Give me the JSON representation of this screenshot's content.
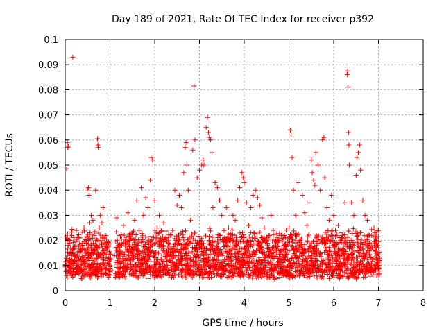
{
  "chart_data": {
    "type": "scatter",
    "title": "Day 189 of 2021, Rate Of TEC Index for receiver p392",
    "xlabel": "GPS time / hours",
    "ylabel": "ROTI / TECUs",
    "xlim": [
      0,
      8
    ],
    "ylim": [
      0,
      0.1
    ],
    "xticks": [
      0,
      1,
      2,
      3,
      4,
      5,
      6,
      7,
      8
    ],
    "xtick_labels": [
      "0",
      "1",
      "2",
      "3",
      "4",
      "5",
      "6",
      "7",
      "8"
    ],
    "yticks": [
      0,
      0.01,
      0.02,
      0.03,
      0.04,
      0.05,
      0.06,
      0.07,
      0.08,
      0.09,
      0.1
    ],
    "ytick_labels": [
      "0",
      "0.01",
      "0.02",
      "0.03",
      "0.04",
      "0.05",
      "0.06",
      "0.07",
      "0.08",
      "0.09",
      "0.1"
    ],
    "grid": true,
    "marker": "+",
    "color": "#ff0000",
    "series": [
      {
        "name": "ROTI",
        "points": [
          [
            0.02,
            0.008
          ],
          [
            0.03,
            0.0485
          ],
          [
            0.04,
            0.012
          ],
          [
            0.05,
            0.059
          ],
          [
            0.06,
            0.057
          ],
          [
            0.07,
            0.0575
          ],
          [
            0.08,
            0.015
          ],
          [
            0.1,
            0.02
          ],
          [
            0.12,
            0.009
          ],
          [
            0.15,
            0.022
          ],
          [
            0.17,
            0.093
          ],
          [
            0.2,
            0.011
          ],
          [
            0.22,
            0.018
          ],
          [
            0.25,
            0.024
          ],
          [
            0.28,
            0.007
          ],
          [
            0.3,
            0.013
          ],
          [
            0.33,
            0.021
          ],
          [
            0.36,
            0.016
          ],
          [
            0.4,
            0.01
          ],
          [
            0.42,
            0.025
          ],
          [
            0.45,
            0.014
          ],
          [
            0.48,
            0.02
          ],
          [
            0.5,
            0.0405
          ],
          [
            0.52,
            0.041
          ],
          [
            0.53,
            0.038
          ],
          [
            0.55,
            0.027
          ],
          [
            0.58,
            0.03
          ],
          [
            0.6,
            0.012
          ],
          [
            0.62,
            0.028
          ],
          [
            0.65,
            0.022
          ],
          [
            0.68,
            0.04
          ],
          [
            0.7,
            0.018
          ],
          [
            0.72,
            0.0605
          ],
          [
            0.73,
            0.058
          ],
          [
            0.74,
            0.057
          ],
          [
            0.76,
            0.025
          ],
          [
            0.78,
            0.03
          ],
          [
            0.8,
            0.02
          ],
          [
            0.82,
            0.027
          ],
          [
            0.85,
            0.033
          ],
          [
            0.88,
            0.015
          ],
          [
            0.9,
            0.012
          ],
          [
            0.92,
            0.009
          ],
          [
            0.95,
            0.006
          ],
          [
            1.0,
            0.01
          ],
          [
            1.05,
            0.008
          ],
          [
            1.1,
            0.014
          ],
          [
            1.15,
            0.029
          ],
          [
            1.2,
            0.022
          ],
          [
            1.25,
            0.018
          ],
          [
            1.3,
            0.026
          ],
          [
            1.35,
            0.012
          ],
          [
            1.4,
            0.031
          ],
          [
            1.45,
            0.02
          ],
          [
            1.5,
            0.015
          ],
          [
            1.55,
            0.028
          ],
          [
            1.6,
            0.036
          ],
          [
            1.65,
            0.024
          ],
          [
            1.7,
            0.041
          ],
          [
            1.75,
            0.03
          ],
          [
            1.8,
            0.037
          ],
          [
            1.85,
            0.033
          ],
          [
            1.9,
            0.044
          ],
          [
            1.92,
            0.053
          ],
          [
            1.95,
            0.052
          ],
          [
            2.0,
            0.036
          ],
          [
            2.05,
            0.025
          ],
          [
            2.1,
            0.03
          ],
          [
            2.15,
            0.02
          ],
          [
            2.2,
            0.027
          ],
          [
            2.3,
            0.019
          ],
          [
            2.4,
            0.024
          ],
          [
            2.45,
            0.04
          ],
          [
            2.5,
            0.034
          ],
          [
            2.55,
            0.038
          ],
          [
            2.6,
            0.033
          ],
          [
            2.65,
            0.047
          ],
          [
            2.68,
            0.057
          ],
          [
            2.7,
            0.059
          ],
          [
            2.72,
            0.05
          ],
          [
            2.75,
            0.04
          ],
          [
            2.8,
            0.028
          ],
          [
            2.85,
            0.056
          ],
          [
            2.88,
            0.0815
          ],
          [
            2.9,
            0.06
          ],
          [
            2.95,
            0.045
          ],
          [
            3.0,
            0.048
          ],
          [
            3.05,
            0.05
          ],
          [
            3.08,
            0.052
          ],
          [
            3.1,
            0.05
          ],
          [
            3.15,
            0.065
          ],
          [
            3.18,
            0.069
          ],
          [
            3.2,
            0.063
          ],
          [
            3.22,
            0.061
          ],
          [
            3.25,
            0.06
          ],
          [
            3.28,
            0.055
          ],
          [
            3.3,
            0.033
          ],
          [
            3.35,
            0.043
          ],
          [
            3.4,
            0.041
          ],
          [
            3.45,
            0.036
          ],
          [
            3.5,
            0.03
          ],
          [
            3.55,
            0.02
          ],
          [
            3.6,
            0.033
          ],
          [
            3.65,
            0.025
          ],
          [
            3.7,
            0.02
          ],
          [
            3.75,
            0.03
          ],
          [
            3.8,
            0.028
          ],
          [
            3.85,
            0.036
          ],
          [
            3.9,
            0.041
          ],
          [
            3.95,
            0.047
          ],
          [
            3.98,
            0.045
          ],
          [
            4.0,
            0.043
          ],
          [
            4.05,
            0.035
          ],
          [
            4.1,
            0.026
          ],
          [
            4.15,
            0.033
          ],
          [
            4.2,
            0.038
          ],
          [
            4.25,
            0.04
          ],
          [
            4.3,
            0.037
          ],
          [
            4.35,
            0.034
          ],
          [
            4.4,
            0.029
          ],
          [
            4.45,
            0.025
          ],
          [
            4.5,
            0.02
          ],
          [
            4.6,
            0.03
          ],
          [
            4.65,
            0.024
          ],
          [
            4.7,
            0.018
          ],
          [
            4.8,
            0.022
          ],
          [
            4.9,
            0.017
          ],
          [
            5.0,
            0.025
          ],
          [
            5.03,
            0.064
          ],
          [
            5.05,
            0.062
          ],
          [
            5.07,
            0.053
          ],
          [
            5.1,
            0.04
          ],
          [
            5.15,
            0.03
          ],
          [
            5.2,
            0.043
          ],
          [
            5.25,
            0.02
          ],
          [
            5.3,
            0.038
          ],
          [
            5.35,
            0.031
          ],
          [
            5.4,
            0.026
          ],
          [
            5.45,
            0.035
          ],
          [
            5.5,
            0.052
          ],
          [
            5.52,
            0.047
          ],
          [
            5.55,
            0.044
          ],
          [
            5.58,
            0.042
          ],
          [
            5.6,
            0.055
          ],
          [
            5.65,
            0.05
          ],
          [
            5.7,
            0.04
          ],
          [
            5.75,
            0.06
          ],
          [
            5.78,
            0.061
          ],
          [
            5.8,
            0.045
          ],
          [
            5.85,
            0.033
          ],
          [
            5.9,
            0.028
          ],
          [
            5.95,
            0.038
          ],
          [
            6.0,
            0.03
          ],
          [
            6.05,
            0.022
          ],
          [
            6.1,
            0.026
          ],
          [
            6.15,
            0.02
          ],
          [
            6.2,
            0.015
          ],
          [
            6.25,
            0.035
          ],
          [
            6.3,
            0.086
          ],
          [
            6.31,
            0.0875
          ],
          [
            6.32,
            0.081
          ],
          [
            6.33,
            0.063
          ],
          [
            6.34,
            0.058
          ],
          [
            6.35,
            0.05
          ],
          [
            6.4,
            0.035
          ],
          [
            6.45,
            0.03
          ],
          [
            6.5,
            0.046
          ],
          [
            6.52,
            0.053
          ],
          [
            6.55,
            0.055
          ],
          [
            6.58,
            0.058
          ],
          [
            6.6,
            0.048
          ],
          [
            6.65,
            0.036
          ],
          [
            6.7,
            0.03
          ],
          [
            6.75,
            0.028
          ],
          [
            6.8,
            0.022
          ],
          [
            6.85,
            0.018
          ],
          [
            6.9,
            0.025
          ],
          [
            6.95,
            0.02
          ],
          [
            7.0,
            0.024
          ],
          [
            7.02,
            0.01
          ]
        ]
      }
    ],
    "dense_band": {
      "x_ranges": [
        [
          0.0,
          1.02
        ],
        [
          1.12,
          7.03
        ]
      ],
      "y_floor": 0.0045,
      "y_ceiling": 0.021
    }
  }
}
